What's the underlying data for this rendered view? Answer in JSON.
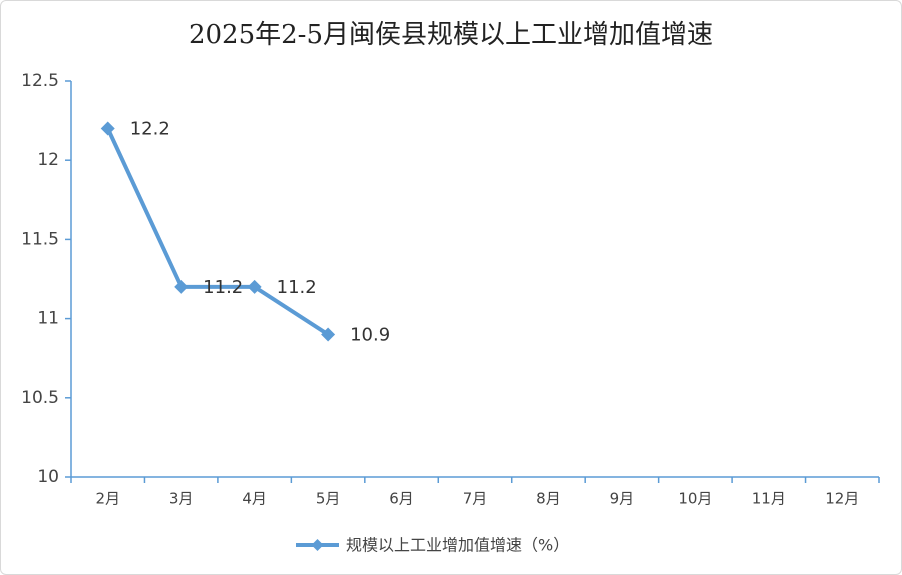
{
  "chart_data": {
    "type": "line",
    "title": "2025年2-5月闽侯县规模以上工业增加值增速",
    "categories": [
      "2月",
      "3月",
      "4月",
      "5月",
      "6月",
      "7月",
      "8月",
      "9月",
      "10月",
      "11月",
      "12月"
    ],
    "series": [
      {
        "name": "规模以上工业增加值增速（%）",
        "color": "#5b9bd5",
        "values": [
          12.2,
          11.2,
          11.2,
          10.9,
          null,
          null,
          null,
          null,
          null,
          null,
          null
        ]
      }
    ],
    "ylim": [
      10,
      12.5
    ],
    "yticks": [
      10,
      10.5,
      11,
      11.5,
      12,
      12.5
    ],
    "axis_color": "#5b9bd5",
    "grid": false
  }
}
